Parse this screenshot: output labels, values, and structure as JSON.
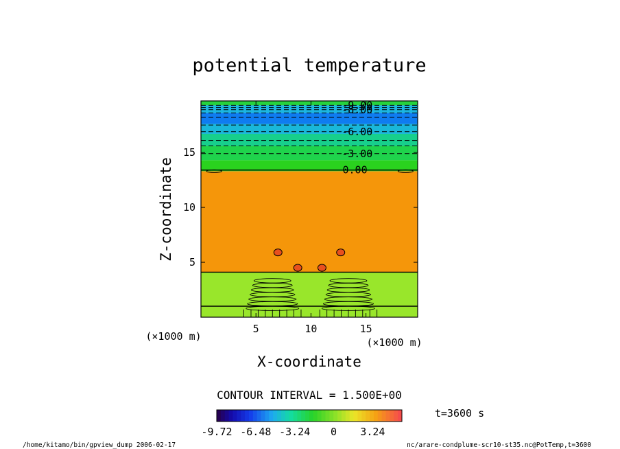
{
  "chart_data": {
    "type": "heatmap",
    "title": "potential temperature",
    "xlabel": "X-coordinate",
    "ylabel": "Z-coordinate",
    "x_unit": "(×1000 m)",
    "y_unit": "(×1000 m)",
    "xlim": [
      0,
      19.7
    ],
    "ylim": [
      0,
      19.7
    ],
    "x_ticks": [
      5,
      10,
      15
    ],
    "y_ticks": [
      5,
      10,
      15
    ],
    "bands": [
      {
        "z0": 0.0,
        "z1": 4.1,
        "value": 1.0,
        "color": "#99e62b"
      },
      {
        "z0": 4.1,
        "z1": 13.3,
        "value": 2.0,
        "color": "#f5960a"
      },
      {
        "z0": 13.3,
        "z1": 14.3,
        "value": -1.0,
        "color": "#2ad21e"
      },
      {
        "z0": 14.3,
        "z1": 15.6,
        "value": -2.5,
        "color": "#1fd34c"
      },
      {
        "z0": 15.6,
        "z1": 16.7,
        "value": -4.0,
        "color": "#17cf8c"
      },
      {
        "z0": 16.7,
        "z1": 17.6,
        "value": -5.5,
        "color": "#19b7d9"
      },
      {
        "z0": 17.6,
        "z1": 18.6,
        "value": -7.5,
        "color": "#0f7cf0"
      },
      {
        "z0": 18.6,
        "z1": 19.3,
        "value": -5.5,
        "color": "#1bb6e0"
      },
      {
        "z0": 19.3,
        "z1": 19.7,
        "value": -2.5,
        "color": "#27d23e"
      }
    ],
    "contour_labels": [
      {
        "text": "-9.00",
        "x": 14.2,
        "z": 19.3
      },
      {
        "text": "-8.00",
        "x": 14.2,
        "z": 18.9
      },
      {
        "text": "-6.00",
        "x": 14.2,
        "z": 16.9
      },
      {
        "text": "-3.00",
        "x": 14.2,
        "z": 14.9
      },
      {
        "text": "0.00",
        "x": 14.0,
        "z": 13.4
      }
    ],
    "warm_spots": [
      {
        "x": 8.8,
        "z": 4.5
      },
      {
        "x": 11.0,
        "z": 4.5
      },
      {
        "x": 7.0,
        "z": 5.9
      },
      {
        "x": 12.7,
        "z": 5.9
      }
    ],
    "contour_interval_text": "CONTOUR INTERVAL = 1.500E+00",
    "colorbar": {
      "range": [
        -9.72,
        5.67
      ],
      "tick_labels": [
        "-9.72",
        "-6.48",
        "-3.24",
        "0",
        "3.24"
      ],
      "tick_values": [
        -9.72,
        -6.48,
        -3.24,
        0,
        3.24
      ]
    },
    "time_label": "t=3600 s",
    "footer_left": "/home/kitamo/bin/gpview_dump  2006-02-17",
    "footer_right": "nc/arare-condplume-scr10-st35.nc@PotTemp,t=3600"
  }
}
